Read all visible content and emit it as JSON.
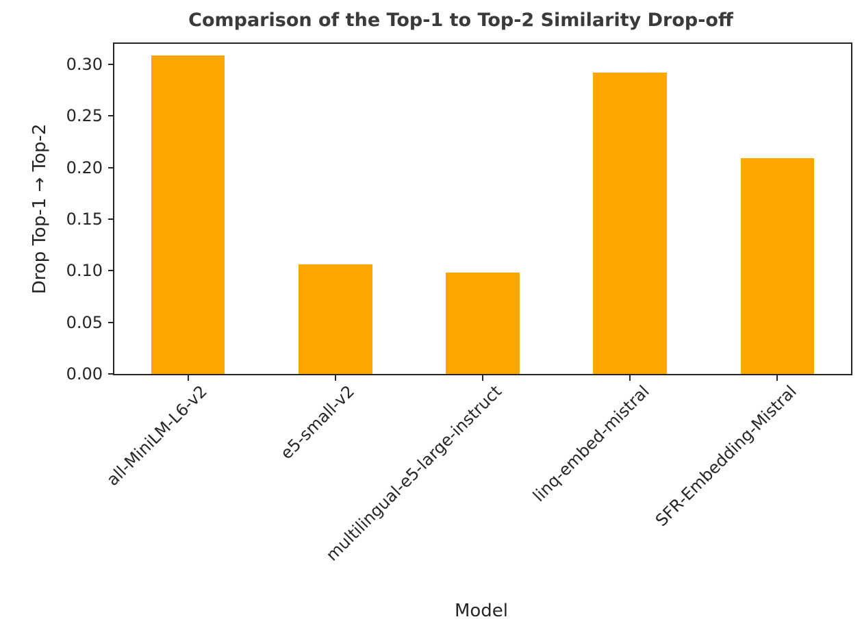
{
  "chart_data": {
    "type": "bar",
    "title": "Comparison of the Top-1 to Top-2 Similarity Drop-off",
    "xlabel": "Model",
    "ylabel": "Drop Top-1 → Top-2",
    "categories": [
      "all-MiniLM-L6-v2",
      "e5-small-v2",
      "multilingual-e5-large-instruct",
      "linq-embed-mistral",
      "SFR-Embedding-Mistral"
    ],
    "values": [
      0.309,
      0.106,
      0.098,
      0.292,
      0.209
    ],
    "ylim": [
      0,
      0.32
    ],
    "yticks": [
      0.0,
      0.05,
      0.1,
      0.15,
      0.2,
      0.25,
      0.3
    ],
    "ytick_labels": [
      "0.00",
      "0.05",
      "0.10",
      "0.15",
      "0.20",
      "0.25",
      "0.30"
    ],
    "xtick_rotation_deg": 45,
    "bar_width_ratio": 0.5,
    "grid": false,
    "legend": null,
    "colors": {
      "bar": "#FFA500",
      "spine": "#262626",
      "text": "#262626",
      "title": "#3a3a3a",
      "background": "#ffffff"
    }
  }
}
